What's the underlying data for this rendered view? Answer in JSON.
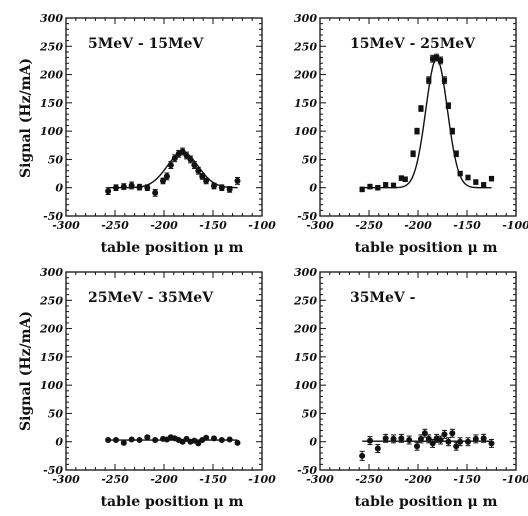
{
  "chart_data": [
    {
      "type": "scatter",
      "title": "5MeV - 15MeV",
      "xlabel": "table position   μ m",
      "ylabel": "Signal (Hz/mA)",
      "xlim": [
        -300,
        -100
      ],
      "ylim": [
        -50,
        300
      ],
      "xticks": [
        "-300",
        "-250",
        "-200",
        "-150",
        "-100"
      ],
      "yticks": [
        "-50",
        "0",
        "50",
        "100",
        "150",
        "200",
        "250",
        "300"
      ],
      "points": [
        {
          "x": -257,
          "y": -6,
          "err": 6
        },
        {
          "x": -249,
          "y": 0,
          "err": 5
        },
        {
          "x": -241,
          "y": 2,
          "err": 5
        },
        {
          "x": -233,
          "y": 4,
          "err": 6
        },
        {
          "x": -225,
          "y": 1,
          "err": 5
        },
        {
          "x": -217,
          "y": 0,
          "err": 5
        },
        {
          "x": -209,
          "y": -9,
          "err": 6
        },
        {
          "x": -201,
          "y": 12,
          "err": 5
        },
        {
          "x": -197,
          "y": 20,
          "err": 6
        },
        {
          "x": -193,
          "y": 40,
          "err": 6
        },
        {
          "x": -189,
          "y": 52,
          "err": 6
        },
        {
          "x": -185,
          "y": 60,
          "err": 6
        },
        {
          "x": -181,
          "y": 64,
          "err": 6
        },
        {
          "x": -177,
          "y": 57,
          "err": 6
        },
        {
          "x": -173,
          "y": 50,
          "err": 6
        },
        {
          "x": -169,
          "y": 40,
          "err": 6
        },
        {
          "x": -165,
          "y": 30,
          "err": 6
        },
        {
          "x": -161,
          "y": 20,
          "err": 5
        },
        {
          "x": -157,
          "y": 12,
          "err": 5
        },
        {
          "x": -149,
          "y": 3,
          "err": 5
        },
        {
          "x": -141,
          "y": 0,
          "err": 5
        },
        {
          "x": -133,
          "y": -3,
          "err": 5
        },
        {
          "x": -125,
          "y": 12,
          "err": 6
        }
      ],
      "fit": {
        "shape": "gaussian",
        "amplitude": 62,
        "center": -181,
        "sigma": 16,
        "offset": 0,
        "x_range": [
          -257,
          -125
        ]
      }
    },
    {
      "type": "scatter",
      "title": "15MeV - 25MeV",
      "xlabel": "table position   μ m",
      "ylabel": "",
      "xlim": [
        -300,
        -100
      ],
      "ylim": [
        -50,
        300
      ],
      "xticks": [
        "-300",
        "-250",
        "-200",
        "-150",
        "-100"
      ],
      "yticks": [
        "-50",
        "0",
        "50",
        "100",
        "150",
        "200",
        "250",
        "300"
      ],
      "points": [
        {
          "x": -257,
          "y": -3,
          "err": 4
        },
        {
          "x": -249,
          "y": 2,
          "err": 4
        },
        {
          "x": -241,
          "y": 0,
          "err": 4
        },
        {
          "x": -233,
          "y": 5,
          "err": 4
        },
        {
          "x": -225,
          "y": 4,
          "err": 4
        },
        {
          "x": -217,
          "y": 17,
          "err": 4
        },
        {
          "x": -213,
          "y": 15,
          "err": 4
        },
        {
          "x": -205,
          "y": 60,
          "err": 5
        },
        {
          "x": -201,
          "y": 100,
          "err": 5
        },
        {
          "x": -197,
          "y": 140,
          "err": 5
        },
        {
          "x": -189,
          "y": 190,
          "err": 6
        },
        {
          "x": -185,
          "y": 228,
          "err": 6
        },
        {
          "x": -181,
          "y": 230,
          "err": 6
        },
        {
          "x": -177,
          "y": 225,
          "err": 6
        },
        {
          "x": -173,
          "y": 190,
          "err": 6
        },
        {
          "x": -169,
          "y": 145,
          "err": 5
        },
        {
          "x": -165,
          "y": 100,
          "err": 5
        },
        {
          "x": -161,
          "y": 60,
          "err": 5
        },
        {
          "x": -157,
          "y": 25,
          "err": 4
        },
        {
          "x": -149,
          "y": 18,
          "err": 4
        },
        {
          "x": -141,
          "y": 10,
          "err": 4
        },
        {
          "x": -133,
          "y": 5,
          "err": 4
        },
        {
          "x": -125,
          "y": 16,
          "err": 4
        }
      ],
      "fit": {
        "shape": "gaussian",
        "amplitude": 228,
        "center": -181,
        "sigma": 11,
        "offset": 0,
        "x_range": [
          -257,
          -125
        ]
      }
    },
    {
      "type": "scatter",
      "title": "25MeV - 35MeV",
      "xlabel": "table position   μ m",
      "ylabel": "Signal (Hz/mA)",
      "xlim": [
        -300,
        -100
      ],
      "ylim": [
        -50,
        300
      ],
      "xticks": [
        "-300",
        "-250",
        "-200",
        "-150",
        "-100"
      ],
      "yticks": [
        "-50",
        "0",
        "50",
        "100",
        "150",
        "200",
        "250",
        "300"
      ],
      "points": [
        {
          "x": -257,
          "y": 3,
          "err": 2
        },
        {
          "x": -249,
          "y": 3,
          "err": 2
        },
        {
          "x": -241,
          "y": -2,
          "err": 2
        },
        {
          "x": -233,
          "y": 4,
          "err": 2
        },
        {
          "x": -225,
          "y": 3,
          "err": 2
        },
        {
          "x": -217,
          "y": 8,
          "err": 2
        },
        {
          "x": -209,
          "y": 3,
          "err": 2
        },
        {
          "x": -201,
          "y": 5,
          "err": 2
        },
        {
          "x": -197,
          "y": 4,
          "err": 2
        },
        {
          "x": -193,
          "y": 8,
          "err": 2
        },
        {
          "x": -189,
          "y": 6,
          "err": 2
        },
        {
          "x": -185,
          "y": 3,
          "err": 2
        },
        {
          "x": -181,
          "y": 0,
          "err": 2
        },
        {
          "x": -177,
          "y": 5,
          "err": 2
        },
        {
          "x": -173,
          "y": 0,
          "err": 2
        },
        {
          "x": -169,
          "y": 2,
          "err": 2
        },
        {
          "x": -165,
          "y": -3,
          "err": 2
        },
        {
          "x": -161,
          "y": 3,
          "err": 2
        },
        {
          "x": -157,
          "y": 7,
          "err": 2
        },
        {
          "x": -149,
          "y": 6,
          "err": 2
        },
        {
          "x": -141,
          "y": 3,
          "err": 2
        },
        {
          "x": -133,
          "y": 4,
          "err": 2
        },
        {
          "x": -125,
          "y": -2,
          "err": 2
        }
      ],
      "fit": {
        "shape": "gaussian",
        "amplitude": 0,
        "center": -181,
        "sigma": 15,
        "offset": 3,
        "x_range": [
          -257,
          -125
        ]
      }
    },
    {
      "type": "scatter",
      "title": "35MeV -",
      "xlabel": "table position   μ m",
      "ylabel": "",
      "xlim": [
        -300,
        -100
      ],
      "ylim": [
        -50,
        300
      ],
      "xticks": [
        "-300",
        "-250",
        "-200",
        "-150",
        "-100"
      ],
      "yticks": [
        "-50",
        "0",
        "50",
        "100",
        "150",
        "200",
        "250",
        "300"
      ],
      "points": [
        {
          "x": -257,
          "y": -25,
          "err": 8
        },
        {
          "x": -249,
          "y": 2,
          "err": 7
        },
        {
          "x": -241,
          "y": -12,
          "err": 7
        },
        {
          "x": -233,
          "y": 6,
          "err": 7
        },
        {
          "x": -225,
          "y": 5,
          "err": 7
        },
        {
          "x": -217,
          "y": 6,
          "err": 7
        },
        {
          "x": -209,
          "y": 3,
          "err": 7
        },
        {
          "x": -201,
          "y": -8,
          "err": 7
        },
        {
          "x": -197,
          "y": 5,
          "err": 7
        },
        {
          "x": -193,
          "y": 15,
          "err": 7
        },
        {
          "x": -189,
          "y": 5,
          "err": 7
        },
        {
          "x": -185,
          "y": -3,
          "err": 7
        },
        {
          "x": -181,
          "y": 6,
          "err": 7
        },
        {
          "x": -177,
          "y": 3,
          "err": 7
        },
        {
          "x": -173,
          "y": 13,
          "err": 7
        },
        {
          "x": -169,
          "y": 0,
          "err": 7
        },
        {
          "x": -165,
          "y": 15,
          "err": 7
        },
        {
          "x": -161,
          "y": -8,
          "err": 7
        },
        {
          "x": -157,
          "y": 0,
          "err": 7
        },
        {
          "x": -149,
          "y": 0,
          "err": 7
        },
        {
          "x": -141,
          "y": 5,
          "err": 7
        },
        {
          "x": -133,
          "y": 6,
          "err": 7
        },
        {
          "x": -125,
          "y": -3,
          "err": 7
        }
      ],
      "fit": {
        "shape": "gaussian",
        "amplitude": 0,
        "center": -181,
        "sigma": 15,
        "offset": 1,
        "x_range": [
          -257,
          -125
        ]
      }
    }
  ]
}
